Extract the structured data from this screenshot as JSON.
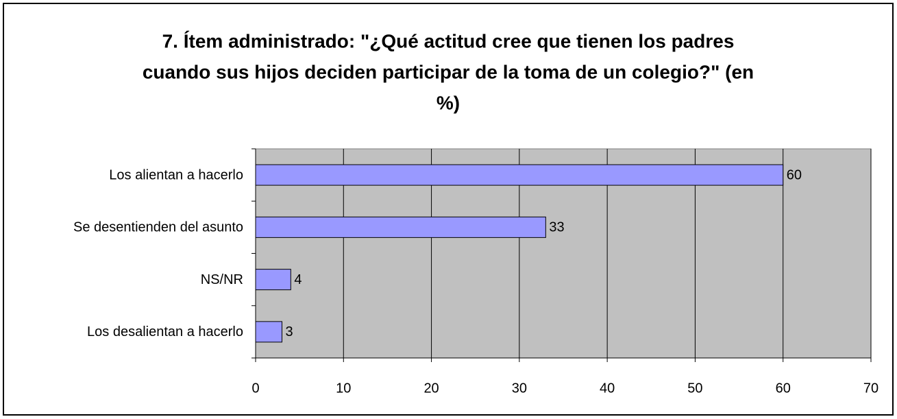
{
  "chart_data": {
    "type": "bar",
    "orientation": "horizontal",
    "title": [
      "7. Ítem administrado: \"¿Qué actitud cree que tienen los padres",
      "cuando sus hijos deciden participar de la toma de un colegio?\" (en",
      "%)"
    ],
    "categories": [
      "Los alientan a hacerlo",
      "Se desentienden del asunto",
      "NS/NR",
      "Los desalientan a hacerlo"
    ],
    "values": [
      60,
      33,
      4,
      3
    ],
    "color": "#9999ff",
    "xlim": [
      0,
      70
    ],
    "xticks": [
      0,
      10,
      20,
      30,
      40,
      50,
      60,
      70
    ],
    "grid": true
  }
}
